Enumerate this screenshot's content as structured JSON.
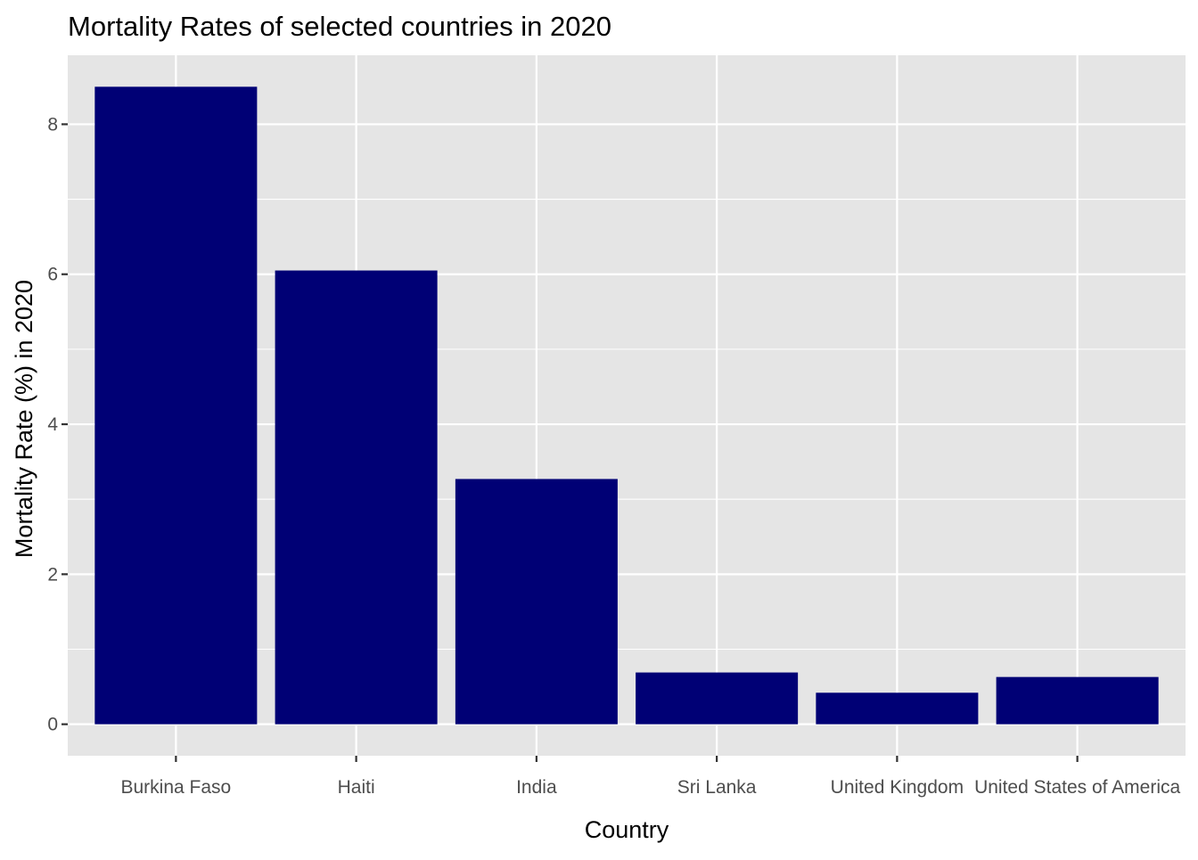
{
  "chart_data": {
    "type": "bar",
    "title": "Mortality Rates of selected countries in 2020",
    "xlabel": "Country",
    "ylabel": "Mortality Rate (%) in 2020",
    "categories": [
      "Burkina Faso",
      "Haiti",
      "India",
      "Sri Lanka",
      "United Kingdom",
      "United States of America"
    ],
    "values": [
      8.5,
      6.05,
      3.27,
      0.69,
      0.42,
      0.63
    ],
    "ylim": [
      -0.42,
      8.92
    ],
    "yticks": [
      0,
      2,
      4,
      6,
      8
    ],
    "ytick_labels": [
      "0",
      "2",
      "4",
      "6",
      "8"
    ],
    "grid": true,
    "legend": "none",
    "colors": {
      "bar": "#000075",
      "panel": "#e5e5e5",
      "grid": "#ffffff",
      "tick_text": "#4d4d4d",
      "tick_mark": "#333333"
    }
  }
}
